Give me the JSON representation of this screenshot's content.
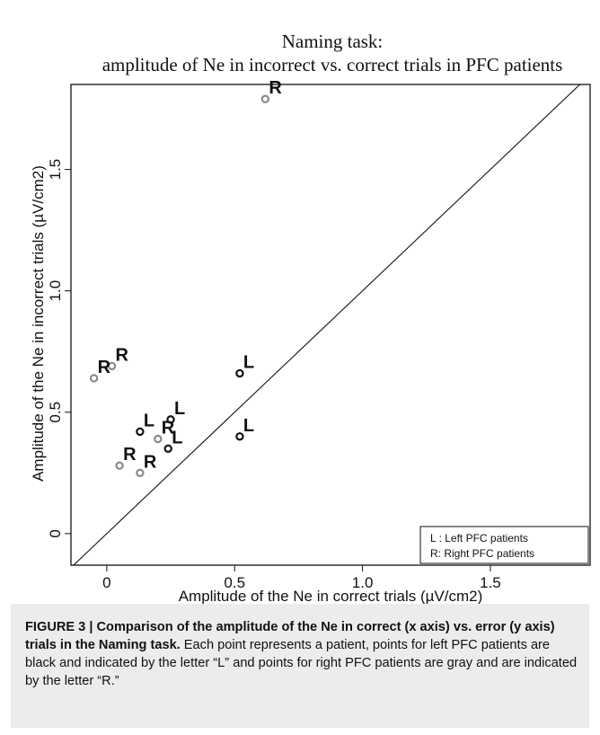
{
  "chart_data": {
    "type": "scatter",
    "title_lines": [
      "Naming task:",
      "amplitude of Ne in incorrect vs. correct trials in PFC patients"
    ],
    "xlabel": "Amplitude of the Ne in correct trials (µV/cm2)",
    "ylabel": "Amplitude of the Ne in incorrect trials (µV/cm2)",
    "xlim": [
      -0.14,
      1.89
    ],
    "ylim": [
      -0.13,
      1.85
    ],
    "xticks": [
      {
        "value": 0,
        "label": "0"
      },
      {
        "value": 0.5,
        "label": "0.5"
      },
      {
        "value": 1.0,
        "label": "1.0"
      },
      {
        "value": 1.5,
        "label": "1.5"
      }
    ],
    "yticks": [
      {
        "value": 0,
        "label": "0"
      },
      {
        "value": 0.5,
        "label": "0.5"
      },
      {
        "value": 1.0,
        "label": "1.0"
      },
      {
        "value": 1.5,
        "label": "1.5"
      }
    ],
    "reference_line": "y = x",
    "grid": false,
    "legend": {
      "placement": "bottom-right",
      "entries": [
        "L : Left PFC patients",
        "R: Right PFC patients"
      ]
    },
    "colors": {
      "left": "#111111",
      "right": "#8a8a8a"
    },
    "series": [
      {
        "name": "Left PFC patients",
        "label": "L",
        "points": [
          {
            "x": 0.13,
            "y": 0.42
          },
          {
            "x": 0.25,
            "y": 0.47
          },
          {
            "x": 0.24,
            "y": 0.35
          },
          {
            "x": 0.52,
            "y": 0.66
          },
          {
            "x": 0.52,
            "y": 0.4
          }
        ]
      },
      {
        "name": "Right PFC patients",
        "label": "R",
        "points": [
          {
            "x": 0.62,
            "y": 1.79
          },
          {
            "x": 0.02,
            "y": 0.69
          },
          {
            "x": -0.05,
            "y": 0.64
          },
          {
            "x": 0.2,
            "y": 0.39
          },
          {
            "x": 0.05,
            "y": 0.28
          },
          {
            "x": 0.13,
            "y": 0.25
          }
        ]
      }
    ]
  },
  "caption": {
    "heading": "FIGURE 3 | Comparison of the amplitude of the Ne in correct (x axis) vs. error (y axis) trials in the Naming task.",
    "body": " Each point represents a patient, points for left PFC patients are black and indicated by the letter “L” and points for right PFC patients are gray and are indicated by the letter “R.”"
  }
}
